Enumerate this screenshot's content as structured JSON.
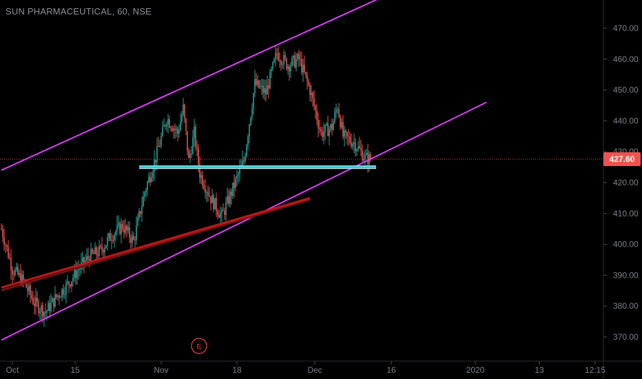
{
  "header": {
    "title": "SUN PHARMACEUTICAL, 60, NSE"
  },
  "event_marker": {
    "label": "E"
  },
  "colors": {
    "background": "#000000",
    "candle_up": "#26a69a",
    "candle_down": "#ef5350",
    "channel": "#e040fb",
    "support": "#26c6da",
    "trendline": "#b71c1c",
    "price_label_bg": "#ef5350",
    "axis_text": "#7d818b",
    "current_price_line": "#ef5350"
  },
  "chart_data": {
    "type": "candlestick",
    "title": "SUN PHARMACEUTICAL, 60, NSE",
    "y_axis": {
      "range": [
        365,
        475
      ],
      "ticks": [
        "370.00",
        "380.00",
        "390.00",
        "400.00",
        "410.00",
        "420.00",
        "430.00",
        "440.00",
        "450.00",
        "460.00",
        "470.00"
      ]
    },
    "x_axis": {
      "ticks": [
        "Oct",
        "15",
        "Nov",
        "18",
        "Dec",
        "16",
        "2020",
        "13",
        "12:15"
      ]
    },
    "current_price": {
      "label": "427.60",
      "value": 427.6
    },
    "trend_path": [
      {
        "x": 0,
        "y": 405
      },
      {
        "x": 2,
        "y": 392
      },
      {
        "x": 4,
        "y": 388
      },
      {
        "x": 6,
        "y": 381
      },
      {
        "x": 8,
        "y": 378
      },
      {
        "x": 10,
        "y": 383
      },
      {
        "x": 12,
        "y": 387
      },
      {
        "x": 14,
        "y": 392
      },
      {
        "x": 16,
        "y": 396
      },
      {
        "x": 18,
        "y": 398
      },
      {
        "x": 20,
        "y": 403
      },
      {
        "x": 22,
        "y": 406
      },
      {
        "x": 24,
        "y": 401
      },
      {
        "x": 26,
        "y": 417
      },
      {
        "x": 28,
        "y": 428
      },
      {
        "x": 30,
        "y": 441
      },
      {
        "x": 32,
        "y": 436
      },
      {
        "x": 33,
        "y": 444
      },
      {
        "x": 34,
        "y": 427
      },
      {
        "x": 35,
        "y": 436
      },
      {
        "x": 36,
        "y": 423
      },
      {
        "x": 38,
        "y": 415
      },
      {
        "x": 40,
        "y": 409
      },
      {
        "x": 42,
        "y": 418
      },
      {
        "x": 44,
        "y": 427
      },
      {
        "x": 46,
        "y": 452
      },
      {
        "x": 48,
        "y": 449
      },
      {
        "x": 50,
        "y": 462
      },
      {
        "x": 52,
        "y": 458
      },
      {
        "x": 54,
        "y": 460
      },
      {
        "x": 56,
        "y": 450
      },
      {
        "x": 57,
        "y": 443
      },
      {
        "x": 58,
        "y": 436
      },
      {
        "x": 60,
        "y": 438
      },
      {
        "x": 61,
        "y": 445
      },
      {
        "x": 62,
        "y": 435
      },
      {
        "x": 64,
        "y": 433
      },
      {
        "x": 66,
        "y": 428
      },
      {
        "x": 67,
        "y": 427.6
      }
    ],
    "overlays": [
      {
        "name": "upper-channel",
        "type": "line",
        "x": [
          0,
          69
        ],
        "y": [
          424,
          480
        ]
      },
      {
        "name": "lower-channel",
        "type": "line",
        "x": [
          0,
          88
        ],
        "y": [
          369,
          446
        ]
      },
      {
        "name": "support-line",
        "type": "line",
        "x": [
          25,
          68
        ],
        "y": [
          425,
          425
        ]
      },
      {
        "name": "rising-trendline",
        "type": "line",
        "x": [
          0,
          56
        ],
        "y": [
          386,
          415
        ]
      }
    ],
    "grid": false,
    "legend": "none"
  }
}
